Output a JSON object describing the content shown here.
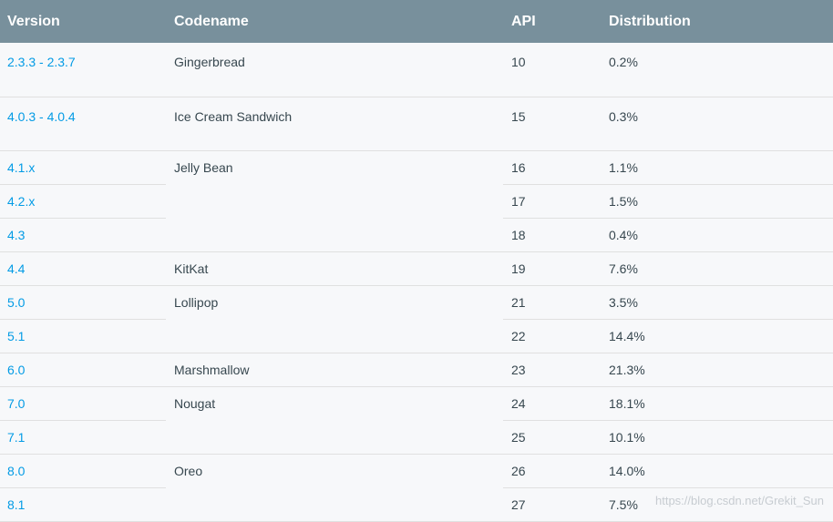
{
  "headers": {
    "version": "Version",
    "codename": "Codename",
    "api": "API",
    "distribution": "Distribution"
  },
  "rows": [
    {
      "version": "2.3.3 - 2.3.7",
      "codename": "Gingerbread",
      "api": "10",
      "distribution": "0.2%"
    },
    {
      "version": "4.0.3 - 4.0.4",
      "codename": "Ice Cream Sandwich",
      "api": "15",
      "distribution": "0.3%"
    },
    {
      "version": "4.1.x",
      "codename": "Jelly Bean",
      "api": "16",
      "distribution": "1.1%"
    },
    {
      "version": "4.2.x",
      "api": "17",
      "distribution": "1.5%"
    },
    {
      "version": "4.3",
      "api": "18",
      "distribution": "0.4%"
    },
    {
      "version": "4.4",
      "codename": "KitKat",
      "api": "19",
      "distribution": "7.6%"
    },
    {
      "version": "5.0",
      "codename": "Lollipop",
      "api": "21",
      "distribution": "3.5%"
    },
    {
      "version": "5.1",
      "api": "22",
      "distribution": "14.4%"
    },
    {
      "version": "6.0",
      "codename": "Marshmallow",
      "api": "23",
      "distribution": "21.3%"
    },
    {
      "version": "7.0",
      "codename": "Nougat",
      "api": "24",
      "distribution": "18.1%"
    },
    {
      "version": "7.1",
      "api": "25",
      "distribution": "10.1%"
    },
    {
      "version": "8.0",
      "codename": "Oreo",
      "api": "26",
      "distribution": "14.0%"
    },
    {
      "version": "8.1",
      "api": "27",
      "distribution": "7.5%"
    }
  ],
  "watermark": "https://blog.csdn.net/Grekit_Sun",
  "colors": {
    "header_bg": "#78909c",
    "link": "#039be5",
    "text": "#37474f",
    "row_bg": "#f7f8fa"
  }
}
